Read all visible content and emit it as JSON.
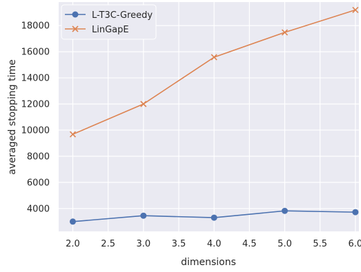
{
  "chart_data": {
    "type": "line",
    "title": "",
    "xlabel": "dimensions",
    "ylabel": "averaged stopping time",
    "x": [
      2.0,
      3.0,
      4.0,
      5.0,
      6.0
    ],
    "xlim": [
      1.8,
      6.05
    ],
    "ylim": [
      2250,
      19800
    ],
    "xticks": [
      "2.0",
      "2.5",
      "3.0",
      "3.5",
      "4.0",
      "4.5",
      "5.0",
      "5.5",
      "6.0"
    ],
    "yticks": [
      "4000",
      "6000",
      "8000",
      "10000",
      "12000",
      "14000",
      "16000",
      "18000"
    ],
    "grid": true,
    "background": "#eaeaf2",
    "legend_position": "top-left",
    "series": [
      {
        "name": "L-T3C-Greedy",
        "color": "#4c72b0",
        "marker": "circle",
        "values": [
          3000,
          3450,
          3300,
          3820,
          3720
        ]
      },
      {
        "name": "LinGapE",
        "color": "#dd8452",
        "marker": "x",
        "values": [
          9680,
          12000,
          15580,
          17480,
          19200
        ]
      }
    ]
  }
}
